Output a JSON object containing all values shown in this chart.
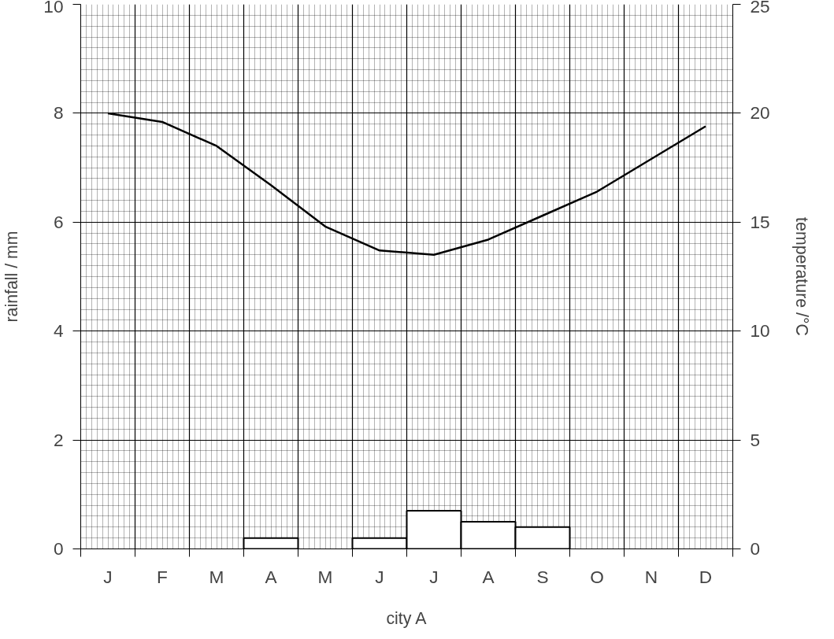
{
  "chart_data": {
    "type": "bar",
    "xlabel": "city A",
    "ylabel": "rainfall / mm",
    "y2label": "temperature /°C",
    "categories": [
      "J",
      "F",
      "M",
      "A",
      "M",
      "J",
      "J",
      "A",
      "S",
      "O",
      "N",
      "D"
    ],
    "ylim": [
      0,
      10
    ],
    "yticks": [
      0,
      2,
      4,
      6,
      8,
      10
    ],
    "y2lim": [
      0,
      25
    ],
    "y2ticks": [
      0,
      5,
      10,
      15,
      20,
      25
    ],
    "grid": true,
    "series": [
      {
        "color": "#ffffff",
        "values": [
          null,
          null,
          null,
          0.2,
          null,
          0.2,
          0.7,
          0.5,
          0.4,
          null,
          null,
          null
        ]
      },
      {
        "type": "line",
        "axis": "y2",
        "color": "#000000",
        "values": [
          20.0,
          19.6,
          18.5,
          16.7,
          14.8,
          13.7,
          13.5,
          14.2,
          15.3,
          16.4,
          17.9,
          19.4
        ]
      }
    ]
  }
}
